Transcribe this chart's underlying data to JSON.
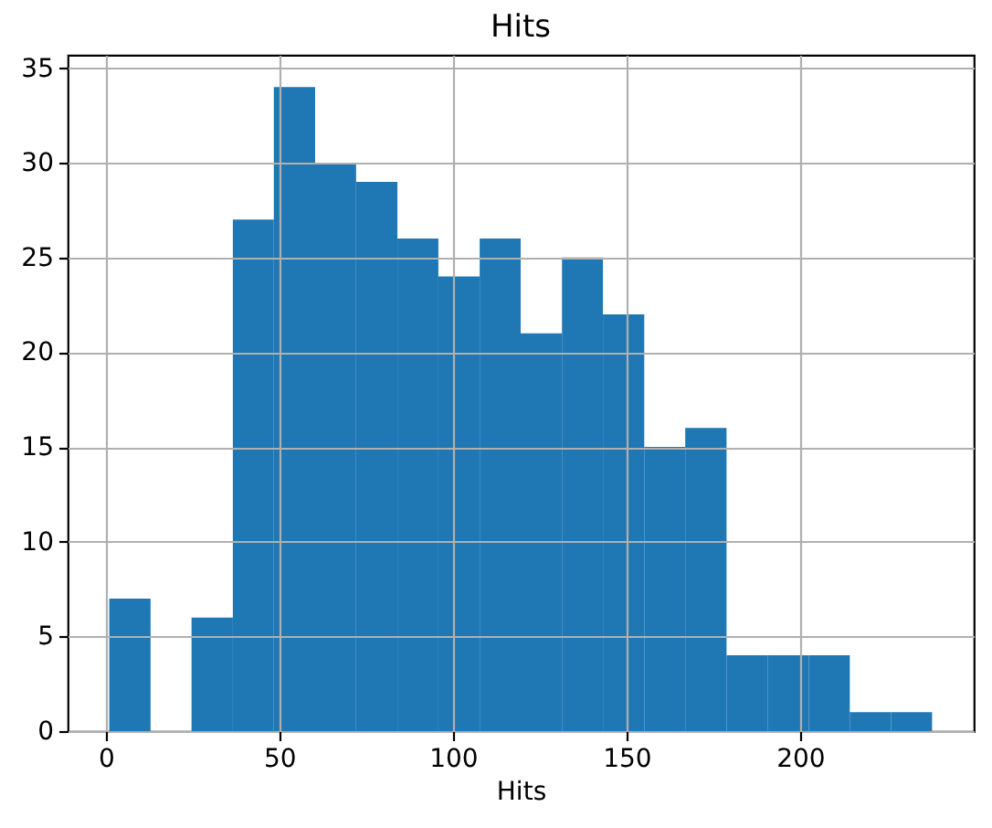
{
  "chart_data": {
    "type": "histogram",
    "title": "Hits",
    "xlabel": "Hits",
    "bins": [
      1,
      12.9,
      24.7,
      36.6,
      48.4,
      60.3,
      72.1,
      84,
      95.8,
      107.7,
      119.5,
      131.4,
      143.2,
      155.1,
      166.9,
      178.8,
      190.6,
      202.5,
      214.3,
      226.2,
      238
    ],
    "values": [
      7,
      0,
      6,
      27,
      34,
      30,
      29,
      26,
      24,
      26,
      21,
      25,
      22,
      15,
      16,
      4,
      4,
      4,
      1,
      1
    ],
    "color": "#1f77b4",
    "xlim": [
      -11,
      250
    ],
    "ylim": [
      0,
      35.7
    ],
    "xticks": [
      0,
      50,
      100,
      150,
      200
    ],
    "yticks": [
      0,
      5,
      10,
      15,
      20,
      25,
      30,
      35
    ],
    "grid": true
  }
}
